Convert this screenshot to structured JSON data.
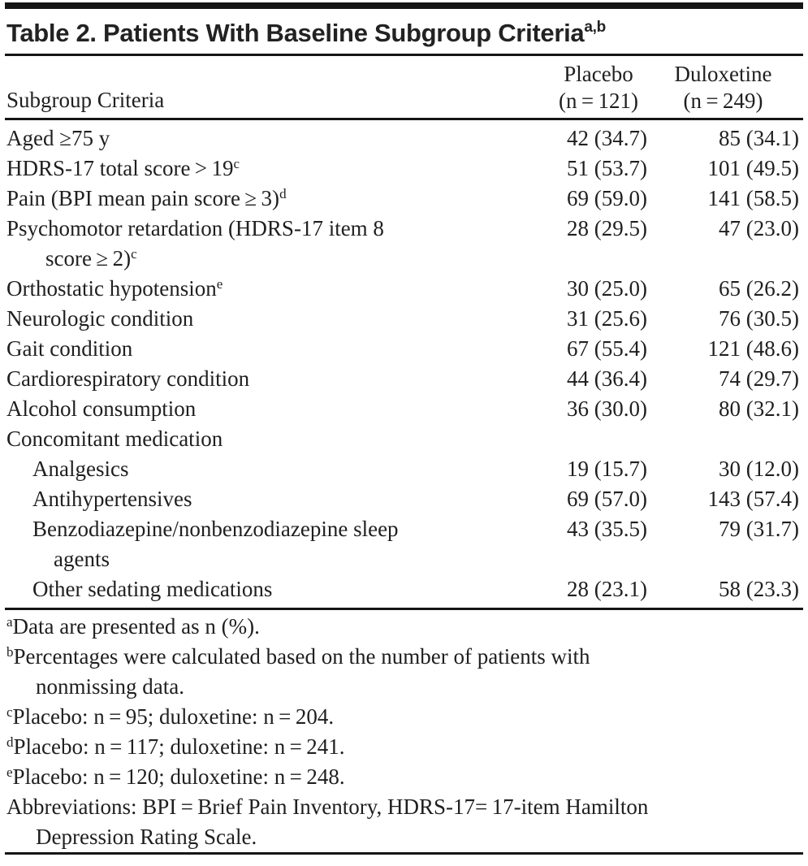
{
  "table": {
    "title": "Table 2. Patients With Baseline Subgroup Criteria",
    "title_sup": "a,b",
    "columns": {
      "criteria_label": "Subgroup Criteria",
      "placebo_name": "Placebo",
      "placebo_n": "(n = 121)",
      "duloxetine_name": "Duloxetine",
      "duloxetine_n": "(n = 249)"
    },
    "rows": [
      {
        "label": "Aged ≥75 y",
        "placebo": "42 (34.7)",
        "duloxetine": "85 (34.1)"
      },
      {
        "label": "HDRS-17 total score > 19",
        "sup": "c",
        "placebo": "51 (53.7)",
        "duloxetine": "101 (49.5)"
      },
      {
        "label": "Pain (BPI mean pain score ≥ 3)",
        "sup": "d",
        "placebo": "69 (59.0)",
        "duloxetine": "141 (58.5)"
      },
      {
        "label": "Psychomotor retardation (HDRS-17 item 8",
        "label2": "score ≥ 2)",
        "sup2": "c",
        "placebo": "28 (29.5)",
        "duloxetine": "47 (23.0)"
      },
      {
        "label": "Orthostatic hypotension",
        "sup": "e",
        "placebo": "30 (25.0)",
        "duloxetine": "65 (26.2)"
      },
      {
        "label": "Neurologic condition",
        "placebo": "31 (25.6)",
        "duloxetine": "76 (30.5)"
      },
      {
        "label": "Gait condition",
        "placebo": "67 (55.4)",
        "duloxetine": "121 (48.6)"
      },
      {
        "label": "Cardiorespiratory condition",
        "placebo": "44 (36.4)",
        "duloxetine": "74 (29.7)"
      },
      {
        "label": "Alcohol consumption",
        "placebo": "36 (30.0)",
        "duloxetine": "80 (32.1)"
      },
      {
        "label": "Concomitant medication",
        "placebo": "",
        "duloxetine": ""
      },
      {
        "label": "Analgesics",
        "indent": true,
        "placebo": "19 (15.7)",
        "duloxetine": "30 (12.0)"
      },
      {
        "label": "Antihypertensives",
        "indent": true,
        "placebo": "69 (57.0)",
        "duloxetine": "143 (57.4)"
      },
      {
        "label": "Benzodiazepine/nonbenzodiazepine sleep",
        "label2": "agents",
        "indent": true,
        "placebo": "43 (35.5)",
        "duloxetine": "79 (31.7)"
      },
      {
        "label": "Other sedating medications",
        "indent": true,
        "placebo": "28 (23.1)",
        "duloxetine": "58 (23.3)"
      }
    ],
    "footnotes": [
      {
        "sup": "a",
        "text": "Data are presented as n (%)."
      },
      {
        "sup": "b",
        "text": "Percentages were calculated based on the number of patients with",
        "text2": "nonmissing data."
      },
      {
        "sup": "c",
        "text": "Placebo: n = 95; duloxetine: n = 204."
      },
      {
        "sup": "d",
        "text": "Placebo: n = 117; duloxetine: n = 241."
      },
      {
        "sup": "e",
        "text": "Placebo: n = 120; duloxetine: n = 248."
      },
      {
        "sup": "",
        "text": "Abbreviations: BPI = Brief Pain Inventory, HDRS-17= 17-item Hamilton",
        "text2": "Depression Rating Scale."
      }
    ]
  }
}
